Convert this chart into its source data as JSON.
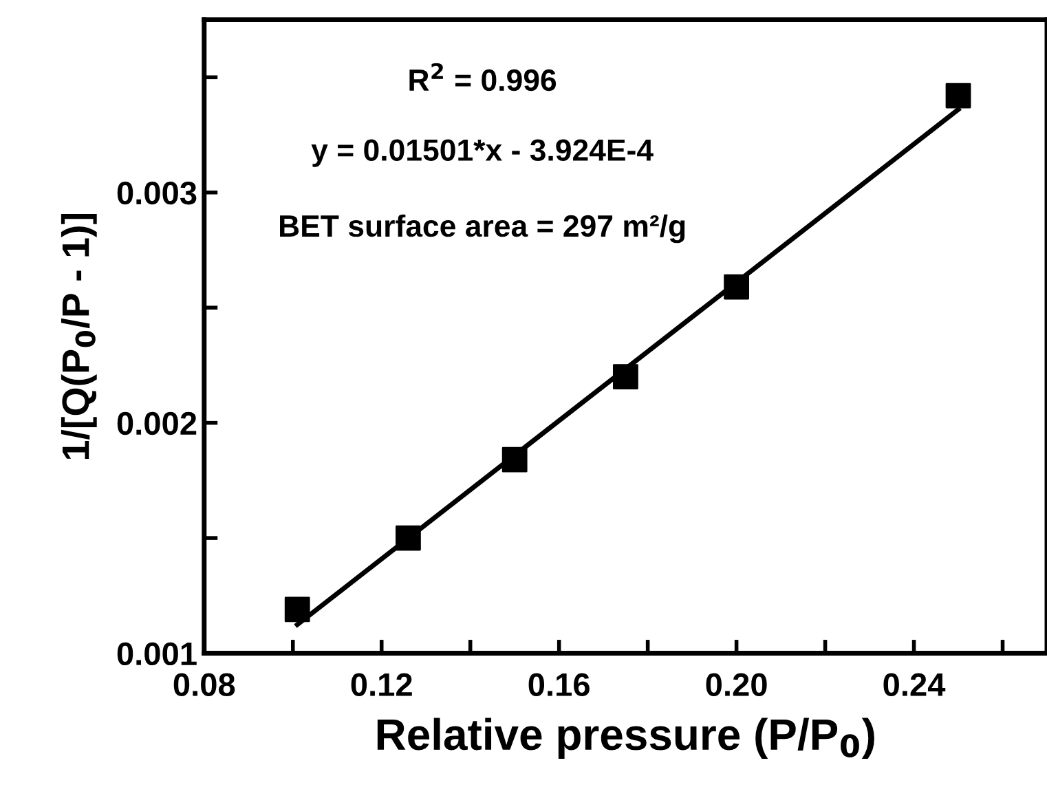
{
  "chart_data": {
    "type": "scatter",
    "xlabel": "Relative pressure (P/P$_{0}$)",
    "ylabel": "1/[Q(P$_{0}$/P - 1)]",
    "annotations": [
      "R$^{2}$ = 0.996",
      "y = 0.01501*x - 3.924E-4",
      "BET surface area = 297 m²/g"
    ],
    "series": [
      {
        "color": "#000000",
        "marker": "square",
        "x": [
          0.101,
          0.126,
          0.15,
          0.175,
          0.2,
          0.25
        ],
        "values": [
          0.00119,
          0.0015,
          0.00184,
          0.0022,
          0.00259,
          0.00342
        ]
      },
      {
        "type": "line",
        "color": "#000000",
        "line_style": "solid",
        "x": [
          0.101,
          0.25
        ],
        "values": [
          0.001124,
          0.00336
        ]
      }
    ],
    "xlim": [
      0.08,
      0.27
    ],
    "xticks": [
      0.08,
      {
        "value": 0.1,
        "label": null
      },
      0.12,
      {
        "value": 0.14,
        "label": null
      },
      0.16,
      {
        "value": 0.18,
        "label": null
      },
      {
        "value": 0.2,
        "label": "0.20"
      },
      {
        "value": 0.22,
        "label": null
      },
      0.24,
      {
        "value": 0.26,
        "label": null
      }
    ],
    "ylim": [
      0.001,
      0.00375
    ],
    "yticks": [
      0.001,
      {
        "value": 0.0015,
        "label": null
      },
      0.002,
      {
        "value": 0.0025,
        "label": null
      },
      0.003,
      {
        "value": 0.0035,
        "label": null
      }
    ],
    "grid": false,
    "legend": false
  }
}
